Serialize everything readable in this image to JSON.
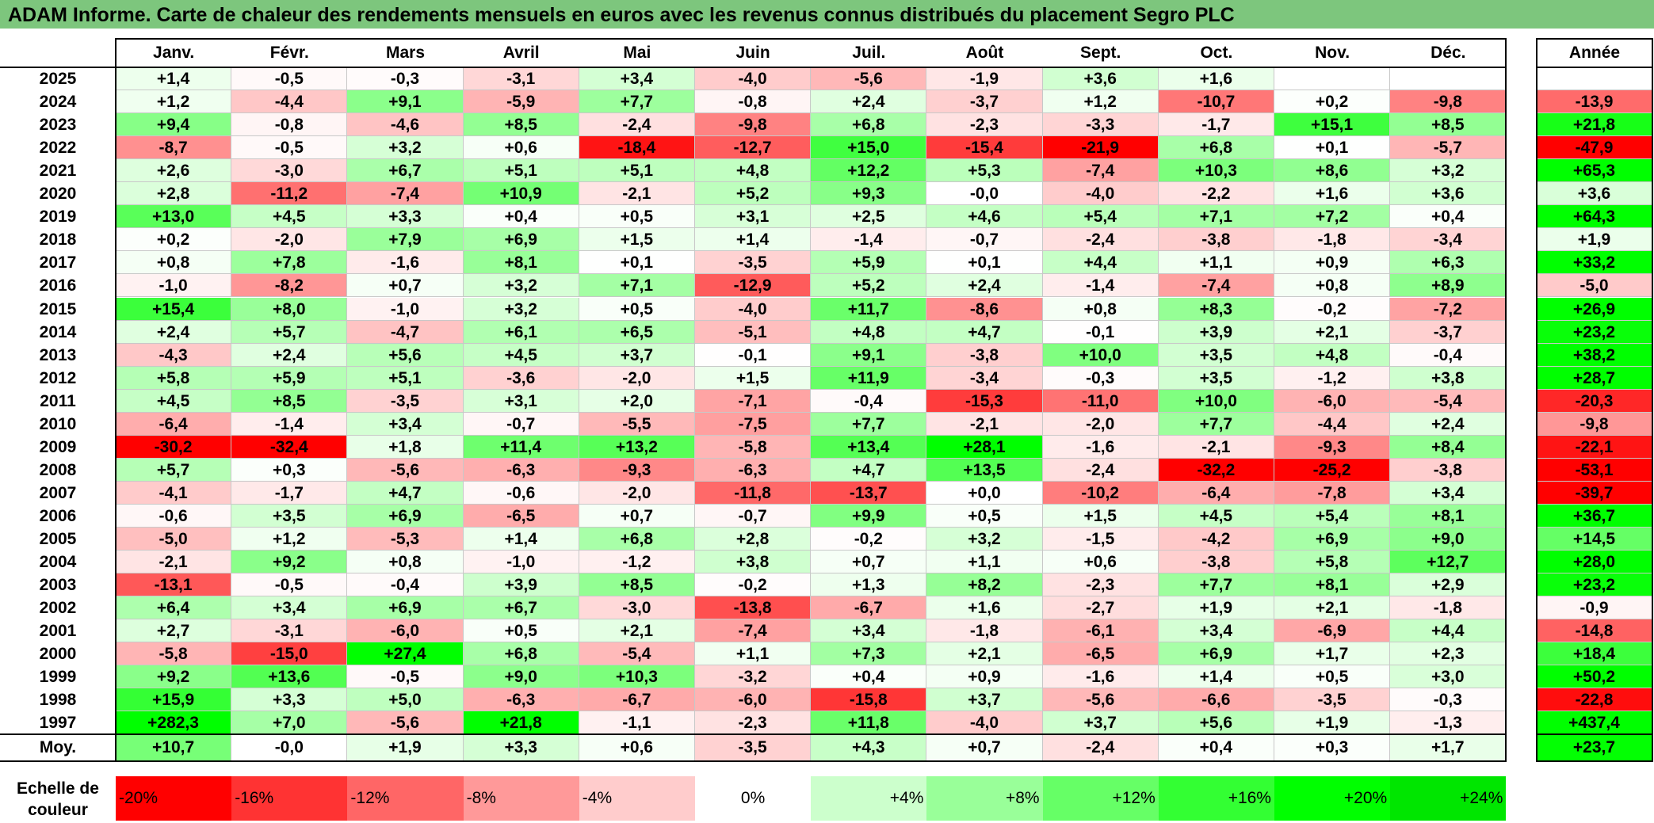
{
  "title": "ADAM Informe. Carte de chaleur des rendements mensuels en euros avec les revenus connus distribués du placement Segro PLC",
  "chart_data": {
    "type": "heatmap",
    "columns": [
      "Janv.",
      "Févr.",
      "Mars",
      "Avril",
      "Mai",
      "Juin",
      "Juil.",
      "Août",
      "Sept.",
      "Oct.",
      "Nov.",
      "Déc."
    ],
    "year_column_label": "Année",
    "rows": [
      {
        "year": "2025",
        "values": [
          "+1,4",
          "-0,5",
          "-0,3",
          "-3,1",
          "+3,4",
          "-4,0",
          "-5,6",
          "-1,9",
          "+3,6",
          "+1,6",
          "",
          ""
        ],
        "annual": ""
      },
      {
        "year": "2024",
        "values": [
          "+1,2",
          "-4,4",
          "+9,1",
          "-5,9",
          "+7,7",
          "-0,8",
          "+2,4",
          "-3,7",
          "+1,2",
          "-10,7",
          "+0,2",
          "-9,8"
        ],
        "annual": "-13,9"
      },
      {
        "year": "2023",
        "values": [
          "+9,4",
          "-0,8",
          "-4,6",
          "+8,5",
          "-2,4",
          "-9,8",
          "+6,8",
          "-2,3",
          "-3,3",
          "-1,7",
          "+15,1",
          "+8,5"
        ],
        "annual": "+21,8"
      },
      {
        "year": "2022",
        "values": [
          "-8,7",
          "-0,5",
          "+3,2",
          "+0,6",
          "-18,4",
          "-12,7",
          "+15,0",
          "-15,4",
          "-21,9",
          "+6,8",
          "+0,1",
          "-5,7"
        ],
        "annual": "-47,9"
      },
      {
        "year": "2021",
        "values": [
          "+2,6",
          "-3,0",
          "+6,7",
          "+5,1",
          "+5,1",
          "+4,8",
          "+12,2",
          "+5,3",
          "-7,4",
          "+10,3",
          "+8,6",
          "+3,2"
        ],
        "annual": "+65,3"
      },
      {
        "year": "2020",
        "values": [
          "+2,8",
          "-11,2",
          "-7,4",
          "+10,9",
          "-2,1",
          "+5,2",
          "+9,3",
          "-0,0",
          "-4,0",
          "-2,2",
          "+1,6",
          "+3,6"
        ],
        "annual": "+3,6"
      },
      {
        "year": "2019",
        "values": [
          "+13,0",
          "+4,5",
          "+3,3",
          "+0,4",
          "+0,5",
          "+3,1",
          "+2,5",
          "+4,6",
          "+5,4",
          "+7,1",
          "+7,2",
          "+0,4"
        ],
        "annual": "+64,3"
      },
      {
        "year": "2018",
        "values": [
          "+0,2",
          "-2,0",
          "+7,9",
          "+6,9",
          "+1,5",
          "+1,4",
          "-1,4",
          "-0,7",
          "-2,4",
          "-3,8",
          "-1,8",
          "-3,4"
        ],
        "annual": "+1,9"
      },
      {
        "year": "2017",
        "values": [
          "+0,8",
          "+7,8",
          "-1,6",
          "+8,1",
          "+0,1",
          "-3,5",
          "+5,9",
          "+0,1",
          "+4,4",
          "+1,1",
          "+0,9",
          "+6,3"
        ],
        "annual": "+33,2"
      },
      {
        "year": "2016",
        "values": [
          "-1,0",
          "-8,2",
          "+0,7",
          "+3,2",
          "+7,1",
          "-12,9",
          "+5,2",
          "+2,4",
          "-1,4",
          "-7,4",
          "+0,8",
          "+8,9"
        ],
        "annual": "-5,0"
      },
      {
        "year": "2015",
        "values": [
          "+15,4",
          "+8,0",
          "-1,0",
          "+3,2",
          "+0,5",
          "-4,0",
          "+11,7",
          "-8,6",
          "+0,8",
          "+8,3",
          "-0,2",
          "-7,2"
        ],
        "annual": "+26,9"
      },
      {
        "year": "2014",
        "values": [
          "+2,4",
          "+5,7",
          "-4,7",
          "+6,1",
          "+6,5",
          "-5,1",
          "+4,8",
          "+4,7",
          "-0,1",
          "+3,9",
          "+2,1",
          "-3,7"
        ],
        "annual": "+23,2"
      },
      {
        "year": "2013",
        "values": [
          "-4,3",
          "+2,4",
          "+5,6",
          "+4,5",
          "+3,7",
          "-0,1",
          "+9,1",
          "-3,8",
          "+10,0",
          "+3,5",
          "+4,8",
          "-0,4"
        ],
        "annual": "+38,2"
      },
      {
        "year": "2012",
        "values": [
          "+5,8",
          "+5,9",
          "+5,1",
          "-3,6",
          "-2,0",
          "+1,5",
          "+11,9",
          "-3,4",
          "-0,3",
          "+3,5",
          "-1,2",
          "+3,8"
        ],
        "annual": "+28,7"
      },
      {
        "year": "2011",
        "values": [
          "+4,5",
          "+8,5",
          "-3,5",
          "+3,1",
          "+2,0",
          "-7,1",
          "-0,4",
          "-15,3",
          "-11,0",
          "+10,0",
          "-6,0",
          "-5,4"
        ],
        "annual": "-20,3"
      },
      {
        "year": "2010",
        "values": [
          "-6,4",
          "-1,4",
          "+3,4",
          "-0,7",
          "-5,5",
          "-7,5",
          "+7,7",
          "-2,1",
          "-2,0",
          "+7,7",
          "-4,4",
          "+2,4"
        ],
        "annual": "-9,8"
      },
      {
        "year": "2009",
        "values": [
          "-30,2",
          "-32,4",
          "+1,8",
          "+11,4",
          "+13,2",
          "-5,8",
          "+13,4",
          "+28,1",
          "-1,6",
          "-2,1",
          "-9,3",
          "+8,4"
        ],
        "annual": "-22,1"
      },
      {
        "year": "2008",
        "values": [
          "+5,7",
          "+0,3",
          "-5,6",
          "-6,3",
          "-9,3",
          "-6,3",
          "+4,7",
          "+13,5",
          "-2,4",
          "-32,2",
          "-25,2",
          "-3,8"
        ],
        "annual": "-53,1"
      },
      {
        "year": "2007",
        "values": [
          "-4,1",
          "-1,7",
          "+4,7",
          "-0,6",
          "-2,0",
          "-11,8",
          "-13,7",
          "+0,0",
          "-10,2",
          "-6,4",
          "-7,8",
          "+3,4"
        ],
        "annual": "-39,7"
      },
      {
        "year": "2006",
        "values": [
          "-0,6",
          "+3,5",
          "+6,9",
          "-6,5",
          "+0,7",
          "-0,7",
          "+9,9",
          "+0,5",
          "+1,5",
          "+4,5",
          "+5,4",
          "+8,1"
        ],
        "annual": "+36,7"
      },
      {
        "year": "2005",
        "values": [
          "-5,0",
          "+1,2",
          "-5,3",
          "+1,4",
          "+6,8",
          "+2,8",
          "-0,2",
          "+3,2",
          "-1,5",
          "-4,2",
          "+6,9",
          "+9,0"
        ],
        "annual": "+14,5"
      },
      {
        "year": "2004",
        "values": [
          "-2,1",
          "+9,2",
          "+0,8",
          "-1,0",
          "-1,2",
          "+3,8",
          "+0,7",
          "+1,1",
          "+0,6",
          "-3,8",
          "+5,8",
          "+12,7"
        ],
        "annual": "+28,0"
      },
      {
        "year": "2003",
        "values": [
          "-13,1",
          "-0,5",
          "-0,4",
          "+3,9",
          "+8,5",
          "-0,2",
          "+1,3",
          "+8,2",
          "-2,3",
          "+7,7",
          "+8,1",
          "+2,9"
        ],
        "annual": "+23,2"
      },
      {
        "year": "2002",
        "values": [
          "+6,4",
          "+3,4",
          "+6,9",
          "+6,7",
          "-3,0",
          "-13,8",
          "-6,7",
          "+1,6",
          "-2,7",
          "+1,9",
          "+2,1",
          "-1,8"
        ],
        "annual": "-0,9"
      },
      {
        "year": "2001",
        "values": [
          "+2,7",
          "-3,1",
          "-6,0",
          "+0,5",
          "+2,1",
          "-7,4",
          "+3,4",
          "-1,8",
          "-6,1",
          "+3,4",
          "-6,9",
          "+4,4"
        ],
        "annual": "-14,8"
      },
      {
        "year": "2000",
        "values": [
          "-5,8",
          "-15,0",
          "+27,4",
          "+6,8",
          "-5,4",
          "+1,1",
          "+7,3",
          "+2,1",
          "-6,5",
          "+6,9",
          "+1,7",
          "+2,3"
        ],
        "annual": "+18,4"
      },
      {
        "year": "1999",
        "values": [
          "+9,2",
          "+13,6",
          "-0,5",
          "+9,0",
          "+10,3",
          "-3,2",
          "+0,4",
          "+0,9",
          "-1,6",
          "+1,4",
          "+0,5",
          "+3,0"
        ],
        "annual": "+50,2"
      },
      {
        "year": "1998",
        "values": [
          "+15,9",
          "+3,3",
          "+5,0",
          "-6,3",
          "-6,7",
          "-6,0",
          "-15,8",
          "+3,7",
          "-5,6",
          "-6,6",
          "-3,5",
          "-0,3"
        ],
        "annual": "-22,8"
      },
      {
        "year": "1997",
        "values": [
          "+282,3",
          "+7,0",
          "-5,6",
          "+21,8",
          "-1,1",
          "-2,3",
          "+11,8",
          "-4,0",
          "+3,7",
          "+5,6",
          "+1,9",
          "-1,3"
        ],
        "annual": "+437,4"
      }
    ],
    "average": {
      "label": "Moy.",
      "values": [
        "+10,7",
        "-0,0",
        "+1,9",
        "+3,3",
        "+0,6",
        "-3,5",
        "+4,3",
        "+0,7",
        "-2,4",
        "+0,4",
        "+0,3",
        "+1,7"
      ],
      "annual": "+23,7"
    },
    "color_scale": {
      "label": "Echelle de couleur",
      "stops": [
        {
          "label": "-20%",
          "color": "#ff0000"
        },
        {
          "label": "-16%",
          "color": "#ff3333"
        },
        {
          "label": "-12%",
          "color": "#ff6666"
        },
        {
          "label": "-8%",
          "color": "#ff9999"
        },
        {
          "label": "-4%",
          "color": "#ffcccc"
        },
        {
          "label": "0%",
          "color": "#ffffff"
        },
        {
          "label": "+4%",
          "color": "#ccffcc"
        },
        {
          "label": "+8%",
          "color": "#99ff99"
        },
        {
          "label": "+12%",
          "color": "#66ff66"
        },
        {
          "label": "+16%",
          "color": "#33ff33"
        },
        {
          "label": "+20%",
          "color": "#00ff00"
        },
        {
          "label": "+24%",
          "color": "#00e600"
        }
      ]
    }
  }
}
